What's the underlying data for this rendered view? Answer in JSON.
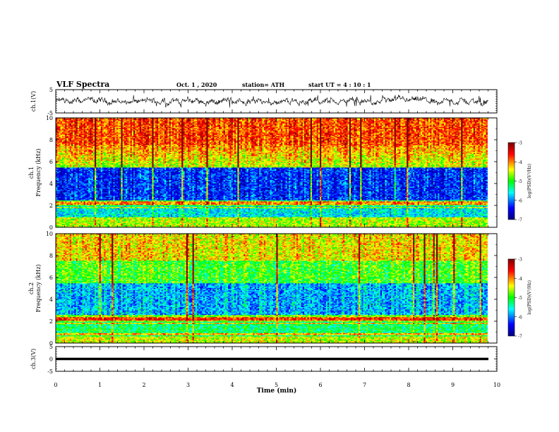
{
  "header": {
    "title": "VLF Spectra",
    "date": "Oct. 1 , 2020",
    "station": "station= ATH",
    "start": "start UT = 4 : 10 : 1"
  },
  "chart_data": [
    {
      "type": "line",
      "panel": "ch1-waveform",
      "ylabel": "ch.1(V)",
      "ylim": [
        -5,
        5
      ],
      "yticks": [
        "5",
        "-5"
      ],
      "xlim": [
        0,
        10
      ],
      "series": [
        {
          "values_description_free": true,
          "color": "#000000"
        }
      ]
    },
    {
      "type": "heatmap",
      "panel": "ch1-spectrogram",
      "ylabel": "ch.1\nFrequency (kHz)",
      "ylim": [
        0,
        10
      ],
      "yticks": [
        "0",
        "2",
        "4",
        "6",
        "8",
        "10"
      ],
      "xlim": [
        0,
        10
      ],
      "colorbar": {
        "label": "log(PSD)(V²/Hz)",
        "range": [
          -7,
          -3
        ],
        "ticks": [
          "-3",
          "-4",
          "-5",
          "-6",
          "-7"
        ]
      }
    },
    {
      "type": "heatmap",
      "panel": "ch2-spectrogram",
      "ylabel": "ch.2\nFrequency (kHz)",
      "ylim": [
        0,
        10
      ],
      "yticks": [
        "0",
        "2",
        "4",
        "6",
        "8",
        "10"
      ],
      "xlim": [
        0,
        10
      ],
      "colorbar": {
        "label": "log(PSD)(V²/Hz)",
        "range": [
          -7,
          -3
        ],
        "ticks": [
          "-3",
          "-4",
          "-5",
          "-6",
          "-7"
        ]
      }
    },
    {
      "type": "line",
      "panel": "ch3-waveform",
      "ylabel": "ch.3(V)",
      "ylim": [
        -5,
        5
      ],
      "yticks": [
        "5",
        "0",
        "-5"
      ],
      "xlim": [
        0,
        10
      ],
      "xlabel": "Time (min)",
      "xticks": [
        "0",
        "1",
        "2",
        "3",
        "4",
        "5",
        "6",
        "7",
        "8",
        "9",
        "10"
      ]
    }
  ],
  "colors": {
    "scale": [
      "#000080",
      "#0000ff",
      "#00ffff",
      "#00ff00",
      "#ffff00",
      "#ff0000",
      "#800000"
    ],
    "line": "#000000"
  }
}
